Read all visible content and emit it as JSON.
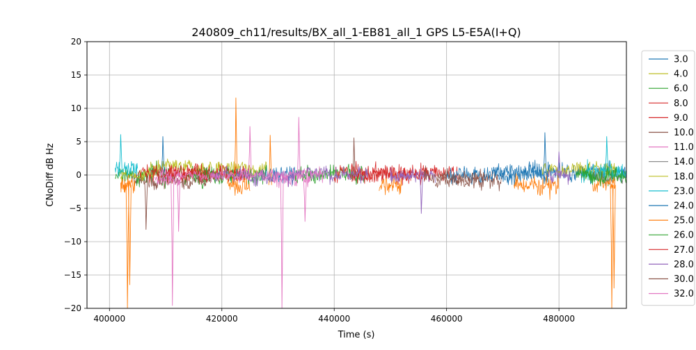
{
  "chart_data": {
    "type": "line",
    "title": "240809_ch11/results/BX_all_1-EB81_all_1 GPS L5-E5A(I+Q)",
    "xlabel": "Time (s)",
    "ylabel": "CNoDiff dB Hz",
    "xlim": [
      396000,
      492000
    ],
    "ylim": [
      -20,
      20
    ],
    "xticks": [
      400000,
      420000,
      440000,
      460000,
      480000
    ],
    "xtick_labels": [
      "400000",
      "420000",
      "440000",
      "460000",
      "480000"
    ],
    "yticks": [
      -20,
      -15,
      -10,
      -5,
      0,
      5,
      10,
      15,
      20
    ],
    "ytick_labels": [
      "−20",
      "−15",
      "−10",
      "−5",
      "0",
      "5",
      "10",
      "15",
      "20"
    ],
    "grid": true,
    "legend_position": "outside-right",
    "series": [
      {
        "name": "3.0",
        "color": "#1f77b4",
        "segments": [
          [
            468000,
            492000
          ]
        ],
        "base": 0.5,
        "amp": 1.6,
        "spikes": []
      },
      {
        "name": "4.0",
        "color": "#bcbd22",
        "segments": [
          [
            407000,
            428000
          ],
          [
            477000,
            490000
          ]
        ],
        "base": 1.0,
        "amp": 1.4,
        "spikes": []
      },
      {
        "name": "6.0",
        "color": "#2ca02c",
        "segments": [
          [
            401000,
            420000
          ],
          [
            433000,
            446000
          ],
          [
            483000,
            492000
          ]
        ],
        "base": 0.0,
        "amp": 1.6,
        "spikes": []
      },
      {
        "name": "8.0",
        "color": "#d62728",
        "segments": [
          [
            410000,
            425000
          ],
          [
            440000,
            462000
          ]
        ],
        "base": 0.3,
        "amp": 1.7,
        "spikes": []
      },
      {
        "name": "9.0",
        "color": "#d62728",
        "segments": [
          [
            443000,
            457000
          ]
        ],
        "base": 0.0,
        "amp": 1.6,
        "spikes": []
      },
      {
        "name": "10.0",
        "color": "#8c564b",
        "segments": [
          [
            404000,
            418000
          ],
          [
            458000,
            470000
          ]
        ],
        "base": -0.8,
        "amp": 1.5,
        "spikes": [
          [
            406500,
            -8.2
          ],
          [
            443500,
            5.6
          ]
        ]
      },
      {
        "name": "11.0",
        "color": "#e377c2",
        "segments": [
          [
            408000,
            413000
          ],
          [
            429000,
            436000
          ]
        ],
        "base": -0.5,
        "amp": 1.5,
        "spikes": [
          [
            411200,
            -19.6
          ],
          [
            412300,
            -8.5
          ],
          [
            433700,
            8.7
          ],
          [
            434800,
            -7.0
          ]
        ]
      },
      {
        "name": "14.0",
        "color": "#7f7f7f",
        "segments": [
          [
            486000,
            492000
          ]
        ],
        "base": 0.0,
        "amp": 1.2,
        "spikes": []
      },
      {
        "name": "18.0",
        "color": "#bcbd22",
        "segments": [
          [
            402000,
            408000
          ]
        ],
        "base": 0.0,
        "amp": 1.3,
        "spikes": []
      },
      {
        "name": "23.0",
        "color": "#17becf",
        "segments": [
          [
            401000,
            405000
          ],
          [
            484000,
            492000
          ]
        ],
        "base": 0.5,
        "amp": 1.8,
        "spikes": [
          [
            402000,
            6.1
          ],
          [
            488500,
            5.8
          ]
        ]
      },
      {
        "name": "24.0",
        "color": "#1f77b4",
        "segments": [
          [
            427000,
            433000
          ],
          [
            460000,
            478000
          ]
        ],
        "base": 0.0,
        "amp": 1.6,
        "spikes": [
          [
            409500,
            5.8
          ],
          [
            477500,
            6.4
          ]
        ]
      },
      {
        "name": "25.0",
        "color": "#ff7f0e",
        "segments": [
          [
            402000,
            404500
          ],
          [
            421000,
            425000
          ],
          [
            448000,
            452000
          ],
          [
            472000,
            480000
          ],
          [
            486000,
            490000
          ]
        ],
        "base": -1.5,
        "amp": 1.8,
        "spikes": [
          [
            403200,
            -20
          ],
          [
            403600,
            -16.5
          ],
          [
            422500,
            11.6
          ],
          [
            428600,
            6.0
          ],
          [
            489400,
            -20
          ],
          [
            489800,
            -17
          ]
        ]
      },
      {
        "name": "26.0",
        "color": "#2ca02c",
        "segments": [
          [
            415000,
            428000
          ],
          [
            484000,
            492000
          ]
        ],
        "base": 0.0,
        "amp": 1.5,
        "spikes": []
      },
      {
        "name": "27.0",
        "color": "#d62728",
        "segments": [
          [
            405000,
            424000
          ]
        ],
        "base": 0.3,
        "amp": 1.6,
        "spikes": []
      },
      {
        "name": "28.0",
        "color": "#9467bd",
        "segments": [
          [
            418000,
            446000
          ],
          [
            450000,
            458000
          ],
          [
            478000,
            482000
          ]
        ],
        "base": 0.0,
        "amp": 1.4,
        "spikes": [
          [
            455500,
            -5.8
          ],
          [
            480000,
            3.5
          ]
        ]
      },
      {
        "name": "30.0",
        "color": "#8c564b",
        "segments": [
          [
            456000,
            467000
          ]
        ],
        "base": -0.3,
        "amp": 1.3,
        "spikes": []
      },
      {
        "name": "32.0",
        "color": "#e377c2",
        "segments": [
          [
            409000,
            438000
          ]
        ],
        "base": 0.0,
        "amp": 1.0,
        "spikes": [
          [
            430700,
            -20
          ],
          [
            425000,
            7.3
          ]
        ]
      }
    ]
  }
}
